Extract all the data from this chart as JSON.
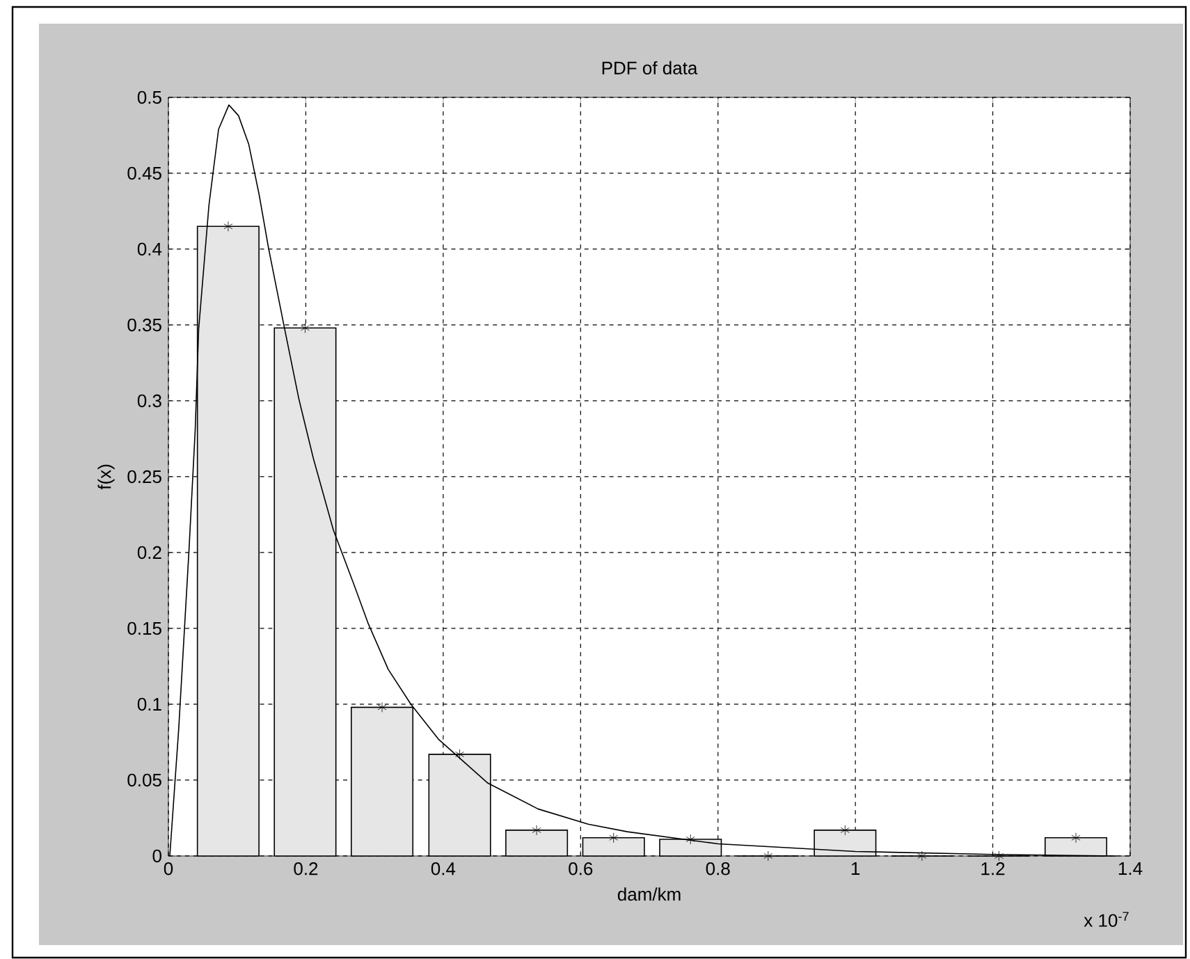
{
  "chart_data": {
    "type": "bar",
    "title": "PDF of data",
    "xlabel": "dam/km",
    "ylabel": "f(x)",
    "annotations": [
      "x 10$^{-7}$"
    ],
    "x": [
      0.087,
      0.199,
      0.311,
      0.424,
      0.536,
      0.648,
      0.76,
      0.873,
      0.985,
      1.097,
      1.209,
      1.321
    ],
    "values": [
      0.415,
      0.348,
      0.098,
      0.067,
      0.017,
      0.012,
      0.011,
      0,
      0.017,
      0,
      0,
      0.012
    ],
    "color": "#e6e6e6",
    "series": [
      {
        "type": "line",
        "color": "#000000",
        "x": [
          0.002,
          0.015,
          0.03,
          0.039,
          0.044,
          0.059,
          0.073,
          0.088,
          0.102,
          0.117,
          0.132,
          0.146,
          0.168,
          0.19,
          0.211,
          0.24,
          0.27,
          0.291,
          0.32,
          0.353,
          0.393,
          0.465,
          0.538,
          0.611,
          0.668,
          0.8,
          1.0,
          1.2,
          1.38
        ],
        "values": [
          0,
          0.084,
          0.202,
          0.281,
          0.347,
          0.429,
          0.479,
          0.495,
          0.488,
          0.469,
          0.436,
          0.4,
          0.35,
          0.301,
          0.262,
          0.215,
          0.179,
          0.153,
          0.123,
          0.1,
          0.077,
          0.048,
          0.031,
          0.021,
          0.016,
          0.008,
          0.003,
          0.001,
          0
        ]
      },
      {
        "type": "scatter",
        "color": "#000000",
        "marker": "cross",
        "x": [
          0.087,
          0.199,
          0.311,
          0.424,
          0.536,
          0.648,
          0.76,
          0.873,
          0.985,
          1.097,
          1.209,
          1.321
        ],
        "values": [
          0.415,
          0.348,
          0.098,
          0.067,
          0.017,
          0.012,
          0.011,
          0,
          0.017,
          0,
          0,
          0.012
        ]
      }
    ],
    "xlim": [
      0,
      1.4
    ],
    "ylim": [
      0,
      0.5
    ],
    "xticks": [
      0,
      0.2,
      0.4,
      0.6,
      0.8,
      1,
      1.2,
      1.4
    ],
    "yticks": [
      0,
      0.05,
      0.1,
      0.15,
      0.2,
      0.25,
      0.3,
      0.35,
      0.4,
      0.45,
      0.5
    ],
    "grid": true
  }
}
